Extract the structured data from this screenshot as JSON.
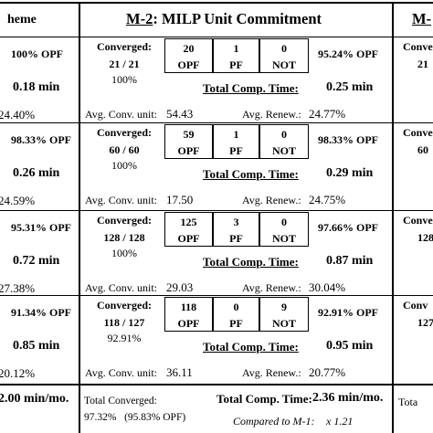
{
  "header": {
    "left_title": "heme",
    "center_title_prefix": "M-2",
    "center_title_rest": ":  MILP Unit Commitment",
    "right_title": "M-"
  },
  "rows": [
    {
      "left": {
        "opf": "100% OPF",
        "time": "0.18 min",
        "renew": "24.40%"
      },
      "converged_label": "Converged:",
      "converged_value": "21 / 21",
      "converged_pct": "100%",
      "boxes": [
        {
          "num": "20",
          "lab": "OPF"
        },
        {
          "num": "1",
          "lab": "PF"
        },
        {
          "num": "0",
          "lab": "NOT"
        }
      ],
      "opf_pct": "95.24% OPF",
      "comp_label": "Total Comp. Time:",
      "comp_value": "0.25 min",
      "conv_unit_label": "Avg. Conv. unit:",
      "conv_unit_value": "54.43",
      "renew_label": "Avg. Renew.:",
      "renew_value": "24.77%",
      "right": {
        "conv": "Conve",
        "val": "21"
      }
    },
    {
      "left": {
        "opf": "98.33% OPF",
        "time": "0.26 min",
        "renew": "24.59%"
      },
      "converged_label": "Converged:",
      "converged_value": "60 / 60",
      "converged_pct": "100%",
      "boxes": [
        {
          "num": "59",
          "lab": "OPF"
        },
        {
          "num": "1",
          "lab": "PF"
        },
        {
          "num": "0",
          "lab": "NOT"
        }
      ],
      "opf_pct": "98.33% OPF",
      "comp_label": "Total Comp. Time:",
      "comp_value": "0.29 min",
      "conv_unit_label": "Avg. Conv. unit:",
      "conv_unit_value": "17.50",
      "renew_label": "Avg. Renew.:",
      "renew_value": "24.75%",
      "right": {
        "conv": "Conve",
        "val": "60"
      }
    },
    {
      "left": {
        "opf": "95.31% OPF",
        "time": "0.72 min",
        "renew": "27.38%"
      },
      "converged_label": "Converged:",
      "converged_value": "128 / 128",
      "converged_pct": "100%",
      "boxes": [
        {
          "num": "125",
          "lab": "OPF"
        },
        {
          "num": "3",
          "lab": "PF"
        },
        {
          "num": "0",
          "lab": "NOT"
        }
      ],
      "opf_pct": "97.66% OPF",
      "comp_label": "Total Comp. Time:",
      "comp_value": "0.87 min",
      "conv_unit_label": "Avg. Conv. unit:",
      "conv_unit_value": "29.03",
      "renew_label": "Avg. Renew.:",
      "renew_value": "30.04%",
      "right": {
        "conv": "Conve",
        "val": "128"
      }
    },
    {
      "left": {
        "opf": "91.34% OPF",
        "time": "0.85 min",
        "renew": "20.12%"
      },
      "converged_label": "Converged:",
      "converged_value": "118 / 127",
      "converged_pct": "92.91%",
      "boxes": [
        {
          "num": "118",
          "lab": "OPF"
        },
        {
          "num": "0",
          "lab": "PF"
        },
        {
          "num": "9",
          "lab": "NOT"
        }
      ],
      "opf_pct": "92.91% OPF",
      "comp_label": "Total Comp. Time:",
      "comp_value": "0.95 min",
      "conv_unit_label": "Avg. Conv. unit:",
      "conv_unit_value": "36.11",
      "renew_label": "Avg. Renew.:",
      "renew_value": "20.77%",
      "right": {
        "conv": "Conv",
        "val": "127"
      }
    }
  ],
  "footer": {
    "left_time": "2.00 min/mo.",
    "total_conv_label": "Total Converged:",
    "total_conv_value": "97.32%",
    "total_conv_opf": "(95.83% OPF)",
    "comp_label": "Total Comp. Time:",
    "comp_value": "2.36 min/mo.",
    "compared_label": "Compared to M-1:",
    "compared_value": "x 1.21",
    "right_label": "Tota"
  }
}
